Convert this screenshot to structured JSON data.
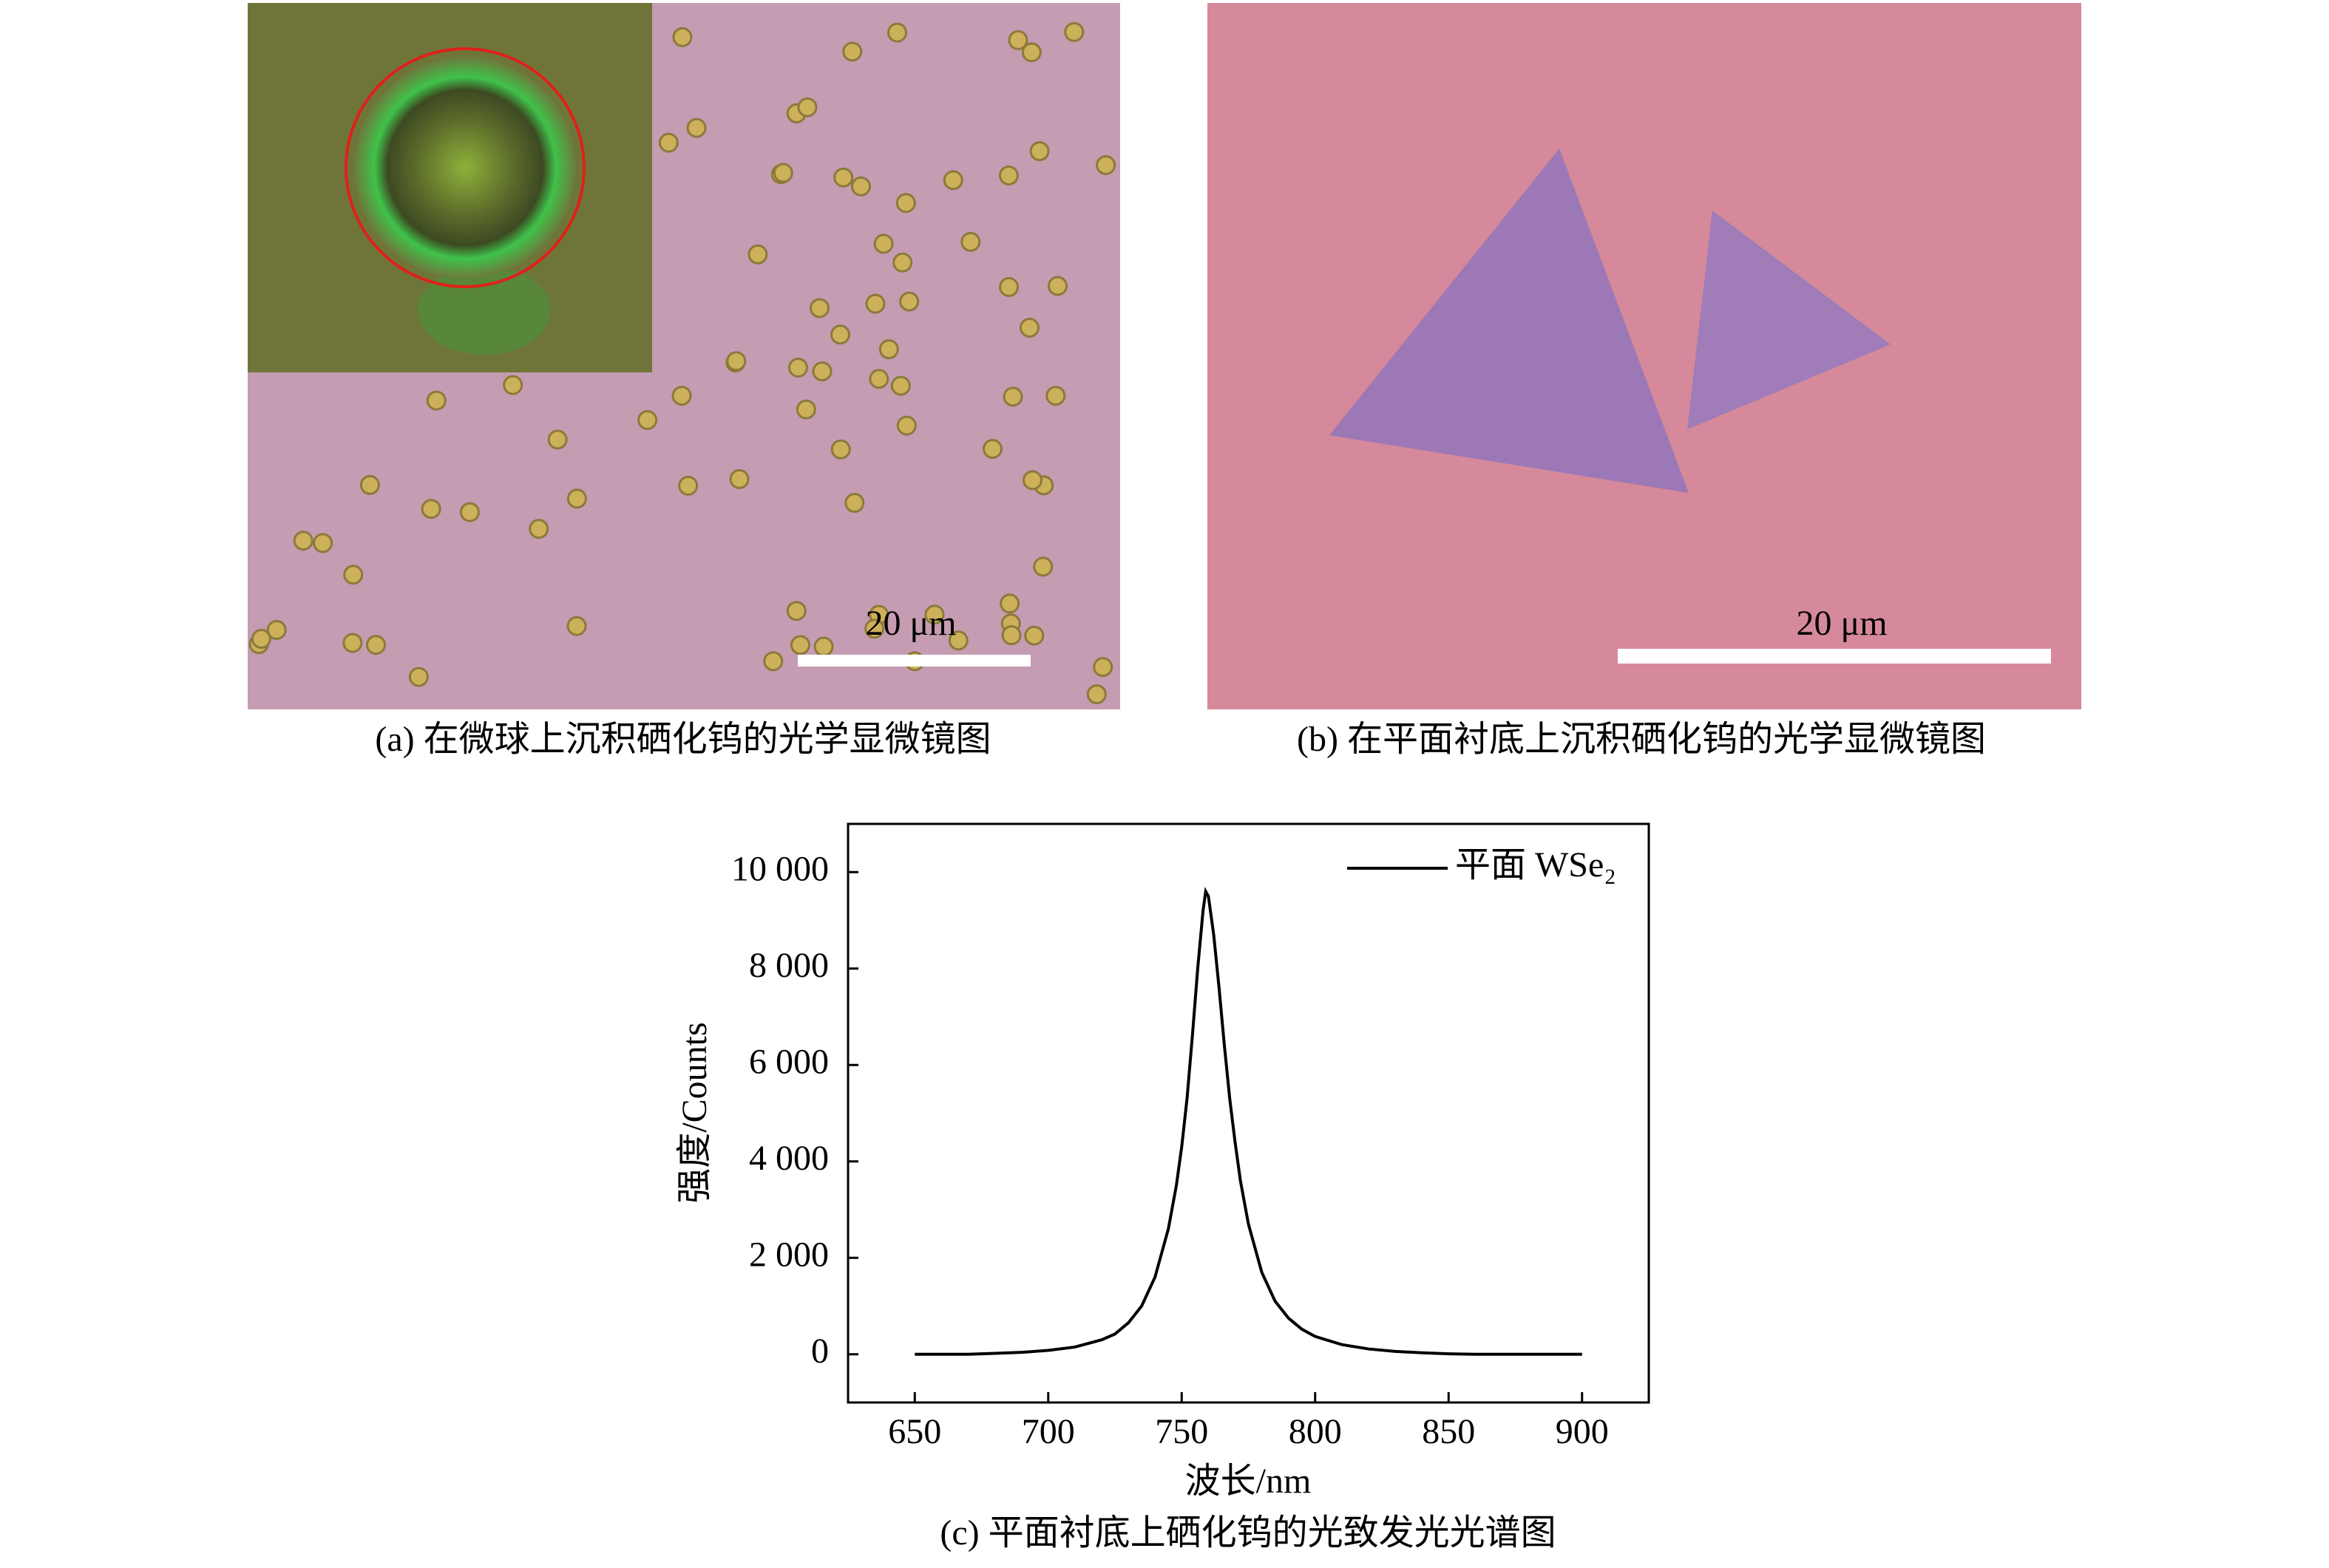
{
  "panels": [
    {
      "caption": "(a) 在微球上沉积硒化钨的光学显微镜图",
      "scale_bar": "20 μm"
    },
    {
      "caption": "(b) 在平面衬底上沉积硒化钨的光学显微镜图",
      "scale_bar": "20 μm"
    }
  ],
  "chart_data": {
    "type": "line",
    "caption": "(c) 平面衬底上硒化钨的光致发光光谱图",
    "xlabel": "波长/nm",
    "ylabel": "强度/Counts",
    "x": [
      650,
      660,
      670,
      680,
      690,
      700,
      710,
      720,
      725,
      730,
      735,
      740,
      745,
      748,
      750,
      752,
      754,
      756,
      758,
      759,
      760,
      762,
      764,
      766,
      768,
      770,
      772,
      775,
      780,
      785,
      790,
      795,
      800,
      810,
      820,
      830,
      840,
      850,
      860,
      870,
      880,
      890,
      900
    ],
    "series": [
      {
        "name": "平面 WSe₂",
        "color": "#000000",
        "values": [
          0,
          0,
          0,
          20,
          40,
          80,
          150,
          300,
          420,
          650,
          1000,
          1600,
          2600,
          3500,
          4300,
          5300,
          6600,
          8000,
          9200,
          9600,
          9500,
          8700,
          7600,
          6400,
          5300,
          4400,
          3600,
          2700,
          1700,
          1100,
          750,
          520,
          370,
          200,
          110,
          60,
          30,
          10,
          0,
          0,
          0,
          0,
          0
        ]
      }
    ],
    "xlim": [
      625,
      925
    ],
    "xticks": [
      650,
      700,
      750,
      800,
      850,
      900
    ],
    "ylim": [
      -1000,
      11000
    ],
    "yticks": [
      0,
      {
        "value": 2000,
        "label": "2 000"
      },
      {
        "value": 4000,
        "label": "4 000"
      },
      {
        "value": 6000,
        "label": "6 000"
      },
      {
        "value": 8000,
        "label": "8 000"
      },
      {
        "value": 10000,
        "label": "10 000"
      }
    ],
    "grid": false,
    "legend": "upper right"
  }
}
